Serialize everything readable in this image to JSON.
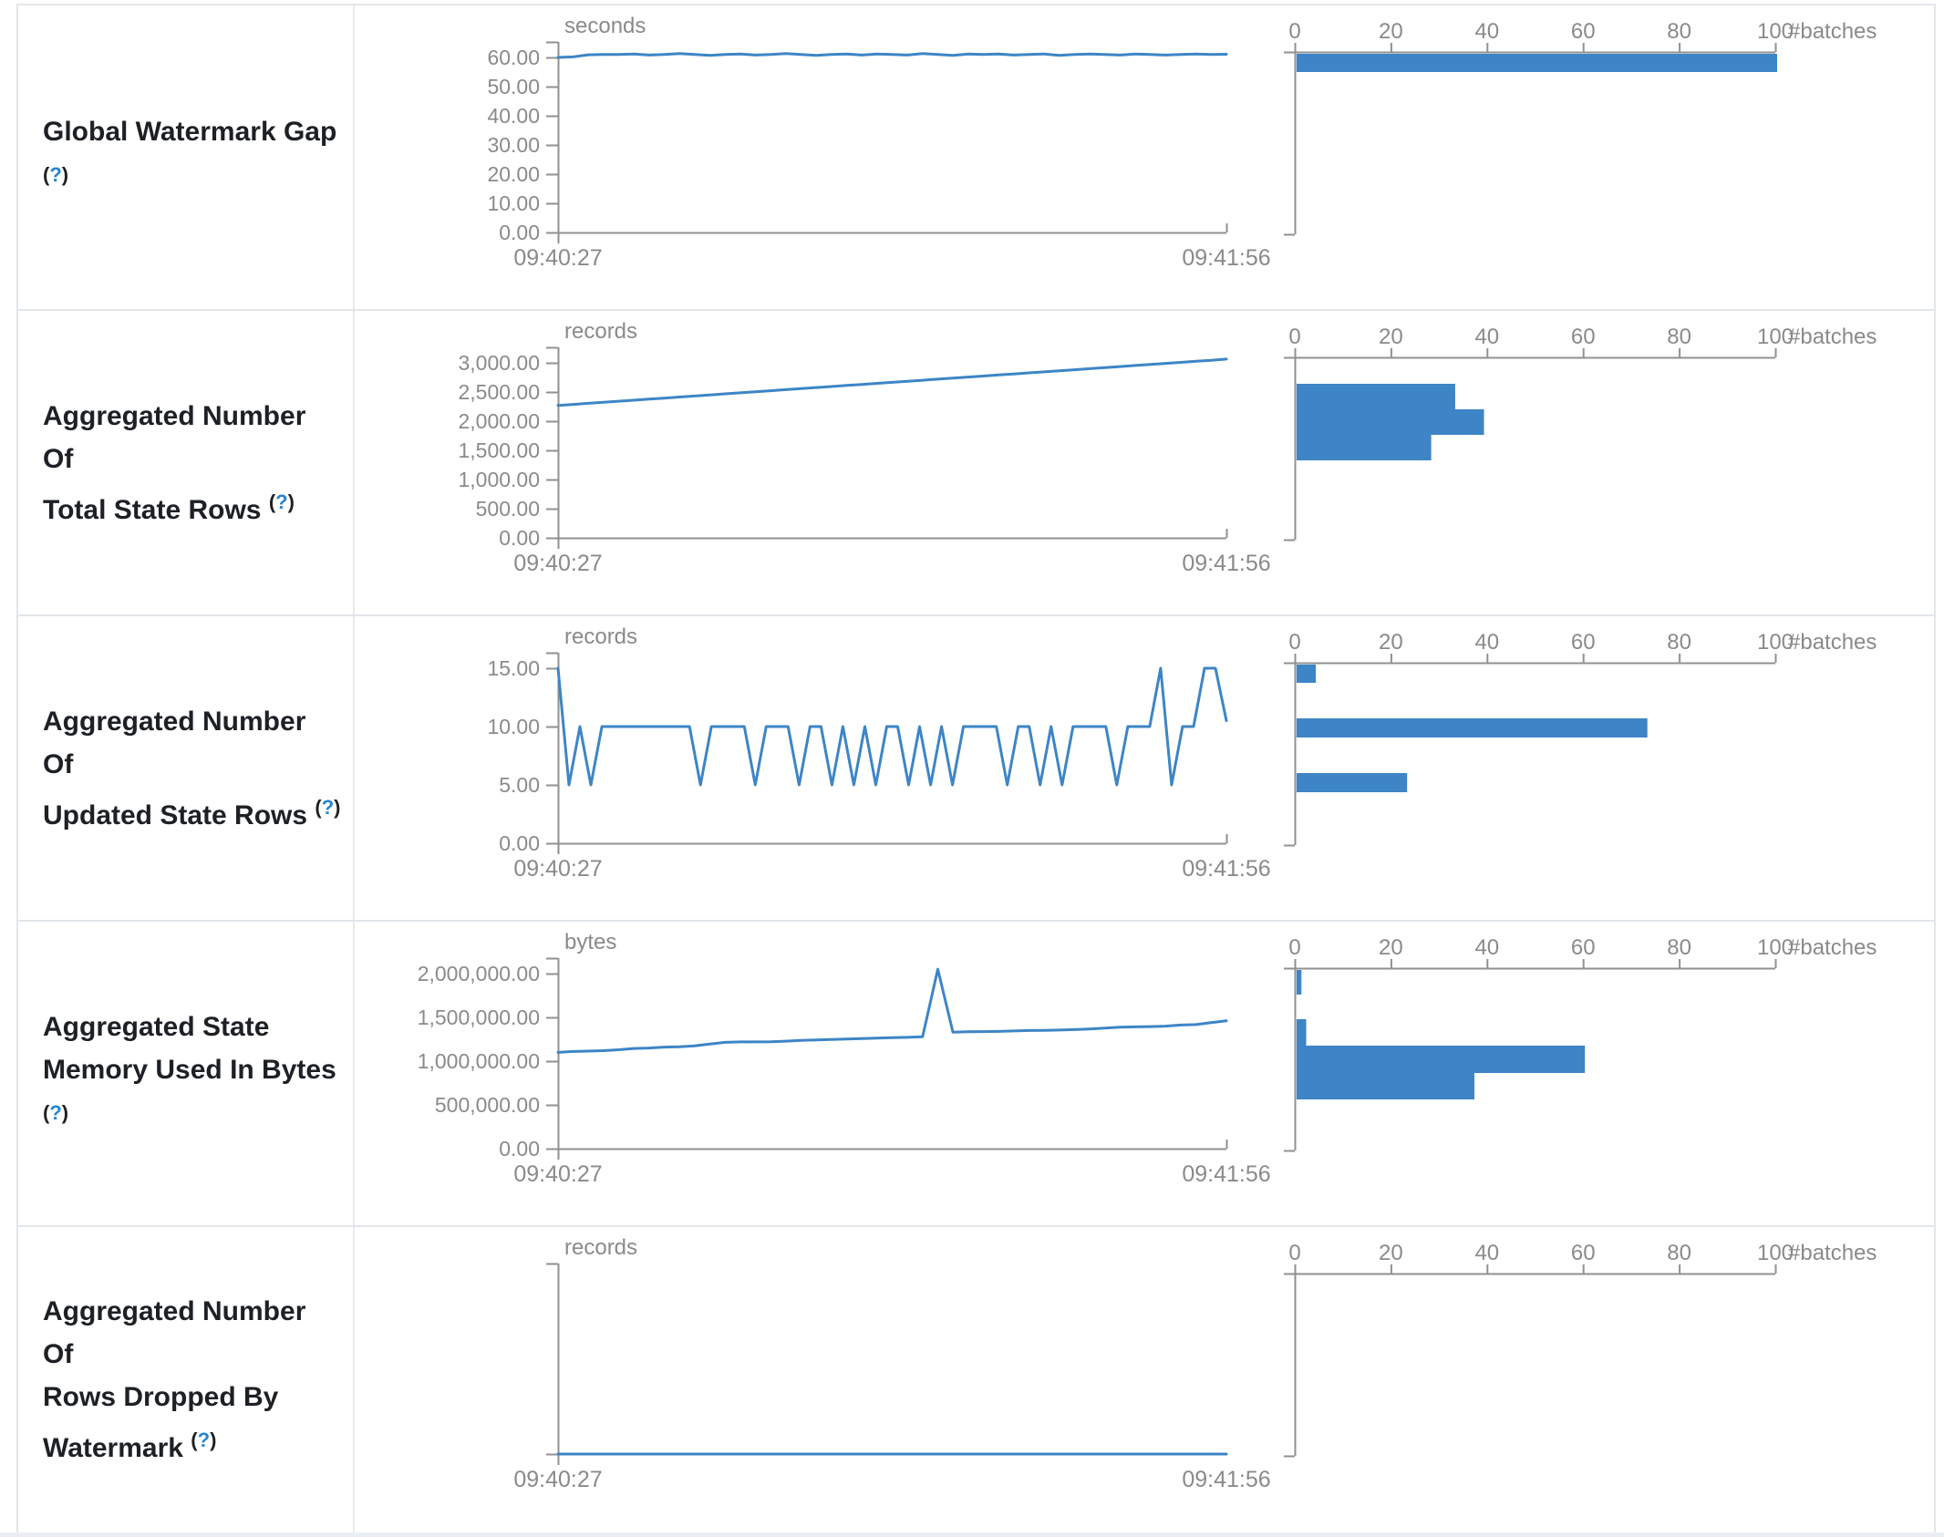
{
  "page": {
    "background": "#ffffff",
    "footer_strip_color": "#ebeef2",
    "table_border": "#e2e6ea"
  },
  "colors": {
    "accent": "#3d85c6",
    "axis_line": "#909090",
    "axis_text": "#8a8a8a",
    "label_text": "#1d2125",
    "help_link": "#2585d3"
  },
  "x_axis": {
    "start_label": "09:40:27",
    "end_label": "09:41:56"
  },
  "histogram_axis": {
    "ticks": [
      0,
      20,
      40,
      60,
      80,
      100
    ],
    "label": "#batches",
    "max": 100
  },
  "chart_data": [
    {
      "metric": "Global Watermark Gap",
      "help": "(?)",
      "label_lines": [
        "Global Watermark Gap",
        "(?)"
      ],
      "type": "line",
      "unit": "seconds",
      "x_range": [
        "09:40:27",
        "09:41:56"
      ],
      "y_axis_max": 60,
      "y_ticks": [
        {
          "value": 0,
          "label": "0.00"
        },
        {
          "value": 10,
          "label": "10.00"
        },
        {
          "value": 20,
          "label": "20.00"
        },
        {
          "value": 30,
          "label": "30.00"
        },
        {
          "value": 40,
          "label": "40.00"
        },
        {
          "value": 50,
          "label": "50.00"
        },
        {
          "value": 60,
          "label": "60.00"
        }
      ],
      "line_values": [
        60,
        60.2,
        60.9,
        61,
        61,
        61.2,
        60.8,
        61,
        61.3,
        61,
        60.7,
        61,
        61.2,
        60.8,
        61,
        61.3,
        61,
        60.7,
        61,
        61.2,
        60.8,
        61.2,
        61,
        60.8,
        61.3,
        61,
        60.7,
        61.2,
        61,
        61.2,
        60.8,
        61,
        61.2,
        60.7,
        61,
        61.2,
        61,
        60.8,
        61.2,
        61,
        60.8,
        61,
        61.2,
        61,
        61.1
      ],
      "histogram_bars": [
        {
          "count": 100,
          "offset_frac": 0.01,
          "thickness_frac": 0.1
        }
      ]
    },
    {
      "metric": "Aggregated Number Of Total State Rows",
      "help": "(?)",
      "label_lines": [
        "Aggregated Number Of",
        "Total State Rows (?)"
      ],
      "type": "line",
      "unit": "records",
      "x_range": [
        "09:40:27",
        "09:41:56"
      ],
      "y_axis_max": 3000,
      "y_ticks": [
        {
          "value": 0,
          "label": "0.00"
        },
        {
          "value": 500,
          "label": "500.00"
        },
        {
          "value": 1000,
          "label": "1,000.00"
        },
        {
          "value": 1500,
          "label": "1,500.00"
        },
        {
          "value": 2000,
          "label": "2,000.00"
        },
        {
          "value": 2500,
          "label": "2,500.00"
        },
        {
          "value": 3000,
          "label": "3,000.00"
        }
      ],
      "line_values": [
        2270,
        2288,
        2306,
        2324,
        2342,
        2360,
        2378,
        2396,
        2414,
        2432,
        2450,
        2468,
        2486,
        2504,
        2522,
        2540,
        2558,
        2576,
        2594,
        2612,
        2630,
        2648,
        2666,
        2684,
        2702,
        2720,
        2738,
        2756,
        2774,
        2792,
        2810,
        2828,
        2846,
        2864,
        2882,
        2900,
        2918,
        2936,
        2954,
        2972,
        2990,
        3008,
        3026,
        3044,
        3064
      ],
      "histogram_bars": [
        {
          "count": 33,
          "offset_frac": 0.145,
          "thickness_frac": 0.14
        },
        {
          "count": 39,
          "offset_frac": 0.285,
          "thickness_frac": 0.14
        },
        {
          "count": 28,
          "offset_frac": 0.425,
          "thickness_frac": 0.14
        }
      ]
    },
    {
      "metric": "Aggregated Number Of Updated State Rows",
      "help": "(?)",
      "label_lines": [
        "Aggregated Number Of",
        "Updated State Rows (?)"
      ],
      "type": "line",
      "unit": "records",
      "x_range": [
        "09:40:27",
        "09:41:56"
      ],
      "y_axis_max": 15,
      "y_ticks": [
        {
          "value": 0,
          "label": "0.00"
        },
        {
          "value": 5,
          "label": "5.00"
        },
        {
          "value": 10,
          "label": "10.00"
        },
        {
          "value": 15,
          "label": "15.00"
        }
      ],
      "line_values": [
        15,
        5,
        10,
        5,
        10,
        10,
        10,
        10,
        10,
        10,
        10,
        10,
        10,
        5,
        10,
        10,
        10,
        10,
        5,
        10,
        10,
        10,
        5,
        10,
        10,
        5,
        10,
        5,
        10,
        5,
        10,
        10,
        5,
        10,
        5,
        10,
        5,
        10,
        10,
        10,
        10,
        5,
        10,
        10,
        5,
        10,
        5,
        10,
        10,
        10,
        10,
        5,
        10,
        10,
        10,
        15,
        5,
        10,
        10,
        15,
        15,
        10.5
      ],
      "histogram_bars": [
        {
          "count": 4,
          "offset_frac": 0.01,
          "thickness_frac": 0.1
        },
        {
          "count": 73,
          "offset_frac": 0.305,
          "thickness_frac": 0.105
        },
        {
          "count": 23,
          "offset_frac": 0.605,
          "thickness_frac": 0.105
        }
      ]
    },
    {
      "metric": "Aggregated State Memory Used In Bytes",
      "help": "(?)",
      "label_lines": [
        "Aggregated State",
        "Memory Used In Bytes",
        "(?)"
      ],
      "type": "line",
      "unit": "bytes",
      "x_range": [
        "09:40:27",
        "09:41:56"
      ],
      "y_axis_max": 2000000,
      "y_ticks": [
        {
          "value": 0,
          "label": "0.00"
        },
        {
          "value": 500000,
          "label": "500,000.00"
        },
        {
          "value": 1000000,
          "label": "1,000,000.00"
        },
        {
          "value": 1500000,
          "label": "1,500,000.00"
        },
        {
          "value": 2000000,
          "label": "2,000,000.00"
        }
      ],
      "line_values": [
        1100000,
        1110000,
        1115000,
        1120000,
        1130000,
        1145000,
        1150000,
        1160000,
        1165000,
        1175000,
        1195000,
        1215000,
        1220000,
        1220000,
        1222000,
        1228000,
        1238000,
        1242000,
        1248000,
        1252000,
        1258000,
        1262000,
        1268000,
        1272000,
        1278000,
        2050000,
        1330000,
        1335000,
        1338000,
        1340000,
        1345000,
        1350000,
        1352000,
        1355000,
        1360000,
        1368000,
        1378000,
        1388000,
        1392000,
        1395000,
        1400000,
        1412000,
        1418000,
        1440000,
        1460000
      ],
      "histogram_bars": [
        {
          "count": 1,
          "offset_frac": 0.01,
          "thickness_frac": 0.135
        },
        {
          "count": 2,
          "offset_frac": 0.28,
          "thickness_frac": 0.145
        },
        {
          "count": 60,
          "offset_frac": 0.425,
          "thickness_frac": 0.15
        },
        {
          "count": 37,
          "offset_frac": 0.575,
          "thickness_frac": 0.145
        }
      ]
    },
    {
      "metric": "Aggregated Number Of Rows Dropped By Watermark",
      "help": "(?)",
      "label_lines": [
        "Aggregated Number Of",
        "Rows Dropped By",
        "Watermark (?)"
      ],
      "type": "line",
      "unit": "records",
      "x_range": [
        "09:40:27",
        "09:41:56"
      ],
      "y_axis_max": 1,
      "y_ticks": [],
      "line_values": [
        0,
        0,
        0,
        0,
        0,
        0,
        0,
        0,
        0,
        0,
        0,
        0,
        0,
        0,
        0,
        0,
        0,
        0,
        0,
        0
      ],
      "histogram_bars": []
    }
  ]
}
